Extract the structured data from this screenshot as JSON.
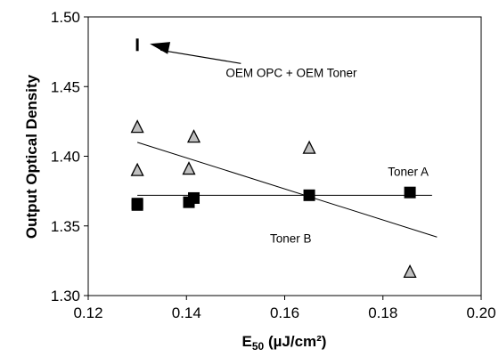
{
  "chart_data": {
    "type": "scatter",
    "xlabel_main": "E",
    "xlabel_sub": "50",
    "xlabel_rest": " (µJ/cm²)",
    "ylabel": "Output Optical Density",
    "xlim": [
      0.12,
      0.2
    ],
    "ylim": [
      1.3,
      1.5
    ],
    "x_ticks": [
      "0.12",
      "0.14",
      "0.16",
      "0.18",
      "0.20"
    ],
    "y_ticks": [
      "1.30",
      "1.35",
      "1.40",
      "1.45",
      "1.50"
    ],
    "grid": false,
    "series": [
      {
        "name": "Toner A",
        "marker": "square",
        "color": "#000000",
        "points": [
          [
            0.13,
            1.365
          ],
          [
            0.13,
            1.366
          ],
          [
            0.1405,
            1.367
          ],
          [
            0.1415,
            1.37
          ],
          [
            0.165,
            1.372
          ],
          [
            0.1855,
            1.374
          ]
        ],
        "trendline": [
          [
            0.13,
            1.372
          ],
          [
            0.19,
            1.372
          ]
        ]
      },
      {
        "name": "Toner B",
        "marker": "triangle",
        "color": "#c0c0c0",
        "points": [
          [
            0.13,
            1.421
          ],
          [
            0.13,
            1.39
          ],
          [
            0.1405,
            1.391
          ],
          [
            0.1415,
            1.414
          ],
          [
            0.165,
            1.406
          ],
          [
            0.1855,
            1.317
          ]
        ],
        "trendline": [
          [
            0.13,
            1.41
          ],
          [
            0.191,
            1.342
          ]
        ]
      },
      {
        "name": "OEM OPC + OEM Toner",
        "marker": "bar",
        "color": "#000000",
        "points": [
          [
            0.13,
            1.48
          ]
        ]
      }
    ],
    "annotations": [
      {
        "text": "OEM OPC + OEM Toner",
        "x": 0.148,
        "y": 1.457
      },
      {
        "text": "Toner A",
        "x": 0.181,
        "y": 1.386
      },
      {
        "text": "Toner B",
        "x": 0.157,
        "y": 1.338
      }
    ]
  }
}
